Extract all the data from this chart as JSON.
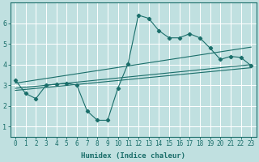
{
  "background_color": "#c0e0e0",
  "grid_color": "#ffffff",
  "line_color": "#1a6e6a",
  "x_label": "Humidex (Indice chaleur)",
  "xlim": [
    -0.5,
    23.5
  ],
  "ylim": [
    0.5,
    7.0
  ],
  "yticks": [
    1,
    2,
    3,
    4,
    5,
    6
  ],
  "xticks": [
    0,
    1,
    2,
    3,
    4,
    5,
    6,
    7,
    8,
    9,
    10,
    11,
    12,
    13,
    14,
    15,
    16,
    17,
    18,
    19,
    20,
    21,
    22,
    23
  ],
  "xtick_labels": [
    "0",
    "1",
    "2",
    "3",
    "4",
    "5",
    "6",
    "7",
    "8",
    "9",
    "10",
    "11",
    "12",
    "13",
    "14",
    "15",
    "16",
    "17",
    "18",
    "19",
    "20",
    "21",
    "22",
    "23"
  ],
  "series_main": {
    "x": [
      0,
      1,
      2,
      3,
      4,
      5,
      6,
      7,
      8,
      9,
      10,
      11,
      12,
      13,
      14,
      15,
      16,
      17,
      18,
      19,
      20,
      21,
      22,
      23
    ],
    "y": [
      3.25,
      2.6,
      2.35,
      3.0,
      3.05,
      3.1,
      3.0,
      1.75,
      1.3,
      1.3,
      2.85,
      4.05,
      6.4,
      6.25,
      5.65,
      5.3,
      5.3,
      5.5,
      5.3,
      4.8,
      4.25,
      4.4,
      4.35,
      3.95
    ]
  },
  "series_linear1": {
    "x": [
      0,
      23
    ],
    "y": [
      3.1,
      4.85
    ]
  },
  "series_linear2": {
    "x": [
      0,
      23
    ],
    "y": [
      2.85,
      4.0
    ]
  },
  "series_linear3": {
    "x": [
      0,
      23
    ],
    "y": [
      2.75,
      3.85
    ]
  },
  "tick_fontsize": 5.5,
  "xlabel_fontsize": 6.5
}
